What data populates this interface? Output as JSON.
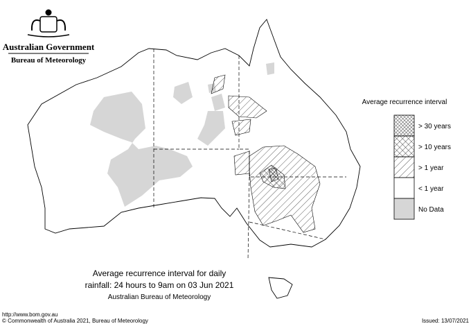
{
  "header": {
    "title": "Australian Government",
    "subtitle": "Bureau of Meteorology"
  },
  "legend": {
    "title": "Average recurrence interval",
    "items": [
      "> 30 years",
      "> 10 years",
      "> 1 year",
      "< 1 year",
      "No Data"
    ]
  },
  "caption": {
    "lines": [
      "Average recurrence interval for daily",
      "rainfall: 24 hours to 9am on 03 Jun 2021"
    ],
    "source": "Australian Bureau of Meteorology"
  },
  "footer": {
    "url": "http://www.bom.gov.au",
    "copyright": "© Commonwealth of Australia 2021, Bureau of Meteorology",
    "issued": "Issued: 13/07/2021"
  }
}
